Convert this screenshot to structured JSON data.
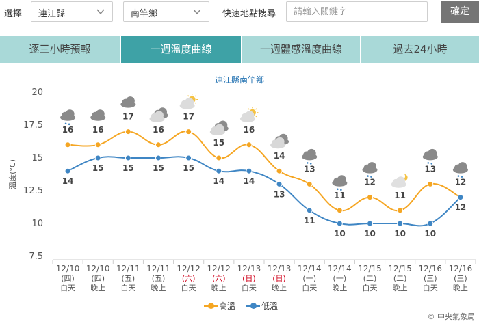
{
  "filters": {
    "select_label": "選擇",
    "county": "連江縣",
    "township": "南竿鄉",
    "search_label": "快速地點搜尋",
    "search_placeholder": "請輸入關鍵字",
    "confirm_label": "確定"
  },
  "tabs": [
    {
      "label": "逐三小時預報",
      "active": false
    },
    {
      "label": "一週溫度曲線",
      "active": true
    },
    {
      "label": "一週體感溫度曲線",
      "active": false
    },
    {
      "label": "過去24小時",
      "active": false
    }
  ],
  "colors": {
    "high": "#f5a623",
    "low": "#3f86c4",
    "weekend": "#d0021b",
    "tab_active": "#3ea2a6",
    "tab_inactive": "#a9d9d8"
  },
  "chart_data": {
    "type": "line",
    "title": "連江縣南竿鄉",
    "ylabel": "溫度(°C)",
    "ylim": [
      7.5,
      20
    ],
    "yticks": [
      "20",
      "17.5",
      "15",
      "12.5",
      "10",
      "7.5"
    ],
    "grid": false,
    "legend_position": "bottom",
    "categories": [
      {
        "date": "12/10",
        "weekday": "(四)",
        "period": "白天",
        "weekend": false,
        "icon": "cloudy-rain-icon"
      },
      {
        "date": "12/10",
        "weekday": "(四)",
        "period": "晚上",
        "weekend": false,
        "icon": "cloudy-icon"
      },
      {
        "date": "12/11",
        "weekday": "(五)",
        "period": "白天",
        "weekend": false,
        "icon": "cloudy-icon"
      },
      {
        "date": "12/11",
        "weekday": "(五)",
        "period": "晚上",
        "weekend": false,
        "icon": "cloudy-night-icon"
      },
      {
        "date": "12/12",
        "weekday": "(六)",
        "period": "白天",
        "weekend": true,
        "icon": "partly-sunny-icon"
      },
      {
        "date": "12/12",
        "weekday": "(六)",
        "period": "晚上",
        "weekend": true,
        "icon": "cloudy-night-icon"
      },
      {
        "date": "12/13",
        "weekday": "(日)",
        "period": "白天",
        "weekend": true,
        "icon": "partly-sunny-icon"
      },
      {
        "date": "12/13",
        "weekday": "(日)",
        "period": "晚上",
        "weekend": true,
        "icon": "cloudy-night-icon"
      },
      {
        "date": "12/14",
        "weekday": "(一)",
        "period": "白天",
        "weekend": false,
        "icon": "cloudy-rain-icon"
      },
      {
        "date": "12/14",
        "weekday": "(一)",
        "period": "晚上",
        "weekend": false,
        "icon": "cloudy-rain-icon"
      },
      {
        "date": "12/15",
        "weekday": "(二)",
        "period": "白天",
        "weekend": false,
        "icon": "cloudy-rain-icon"
      },
      {
        "date": "12/15",
        "weekday": "(二)",
        "period": "晚上",
        "weekend": false,
        "icon": "partly-cloudy-night-icon"
      },
      {
        "date": "12/16",
        "weekday": "(三)",
        "period": "白天",
        "weekend": false,
        "icon": "cloudy-rain-icon"
      },
      {
        "date": "12/16",
        "weekday": "(三)",
        "period": "晚上",
        "weekend": false,
        "icon": "cloudy-rain-icon"
      }
    ],
    "series": [
      {
        "name": "高溫",
        "values": [
          16,
          16,
          17,
          16,
          17,
          15,
          16,
          14,
          13,
          11,
          12,
          11,
          13,
          12
        ]
      },
      {
        "name": "低溫",
        "values": [
          14,
          15,
          15,
          15,
          15,
          14,
          14,
          13,
          11,
          10,
          10,
          10,
          10,
          12
        ]
      }
    ]
  },
  "credit": "© 中央氣象局"
}
